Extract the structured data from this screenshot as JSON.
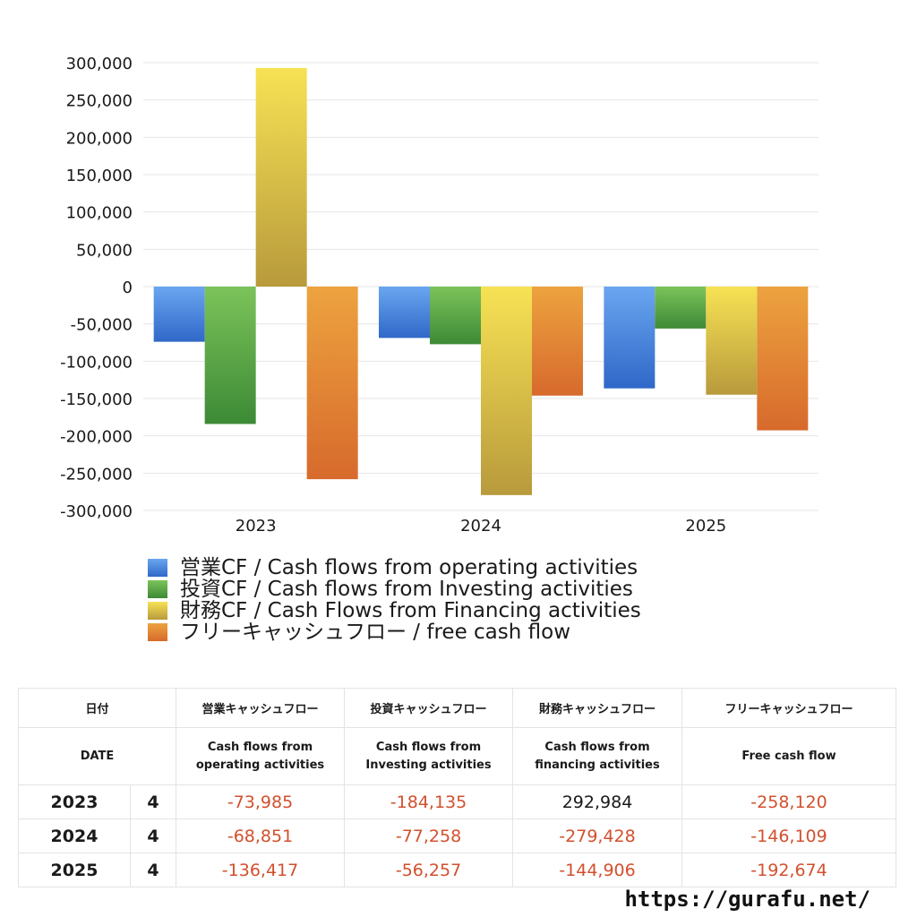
{
  "chart_data": {
    "type": "bar",
    "categories": [
      "2023",
      "2024",
      "2025"
    ],
    "series": [
      {
        "name": "営業CF / Cash flows from operating activities",
        "values": [
          -73985,
          -68851,
          -136417
        ],
        "color_top": "#6aa6f0",
        "color_bottom": "#2f68c8"
      },
      {
        "name": "投資CF / Cash flows from Investing activities",
        "values": [
          -184135,
          -77258,
          -56257
        ],
        "color_top": "#7cc35a",
        "color_bottom": "#3d8a36"
      },
      {
        "name": "財務CF / Cash Flows from Financing activities",
        "values": [
          292984,
          -279428,
          -144906
        ],
        "color_top": "#f7e254",
        "color_bottom": "#b89a3c"
      },
      {
        "name": "フリーキャッシュフロー / free cash flow",
        "values": [
          -258120,
          -146109,
          -192674
        ],
        "color_top": "#eda33f",
        "color_bottom": "#d76a2c"
      }
    ],
    "yticks": [
      "300,000",
      "250,000",
      "200,000",
      "150,000",
      "100,000",
      "50,000",
      "0",
      "-50,000",
      "-100,000",
      "-150,000",
      "-200,000",
      "-250,000",
      "-300,000"
    ],
    "ylim": [
      -300000,
      300000
    ],
    "grid": true,
    "legend_position": "bottom"
  },
  "table": {
    "header1": [
      "日付",
      "",
      "営業キャッシュフロー",
      "投資キャッシュフロー",
      "財務キャッシュフロー",
      "フリーキャッシュフロー"
    ],
    "header2": [
      "DATE",
      "",
      "Cash flows from operating activities",
      "Cash flows from Investing activities",
      "Cash flows from financing activities",
      "Free cash flow"
    ],
    "rows": [
      {
        "year": "2023",
        "count": "4",
        "values": [
          "-73,985",
          "-184,135",
          "292,984",
          "-258,120"
        ]
      },
      {
        "year": "2024",
        "count": "4",
        "values": [
          "-68,851",
          "-77,258",
          "-279,428",
          "-146,109"
        ]
      },
      {
        "year": "2025",
        "count": "4",
        "values": [
          "-136,417",
          "-56,257",
          "-144,906",
          "-192,674"
        ]
      }
    ]
  },
  "footer": {
    "url": "https://gurafu.net/"
  }
}
